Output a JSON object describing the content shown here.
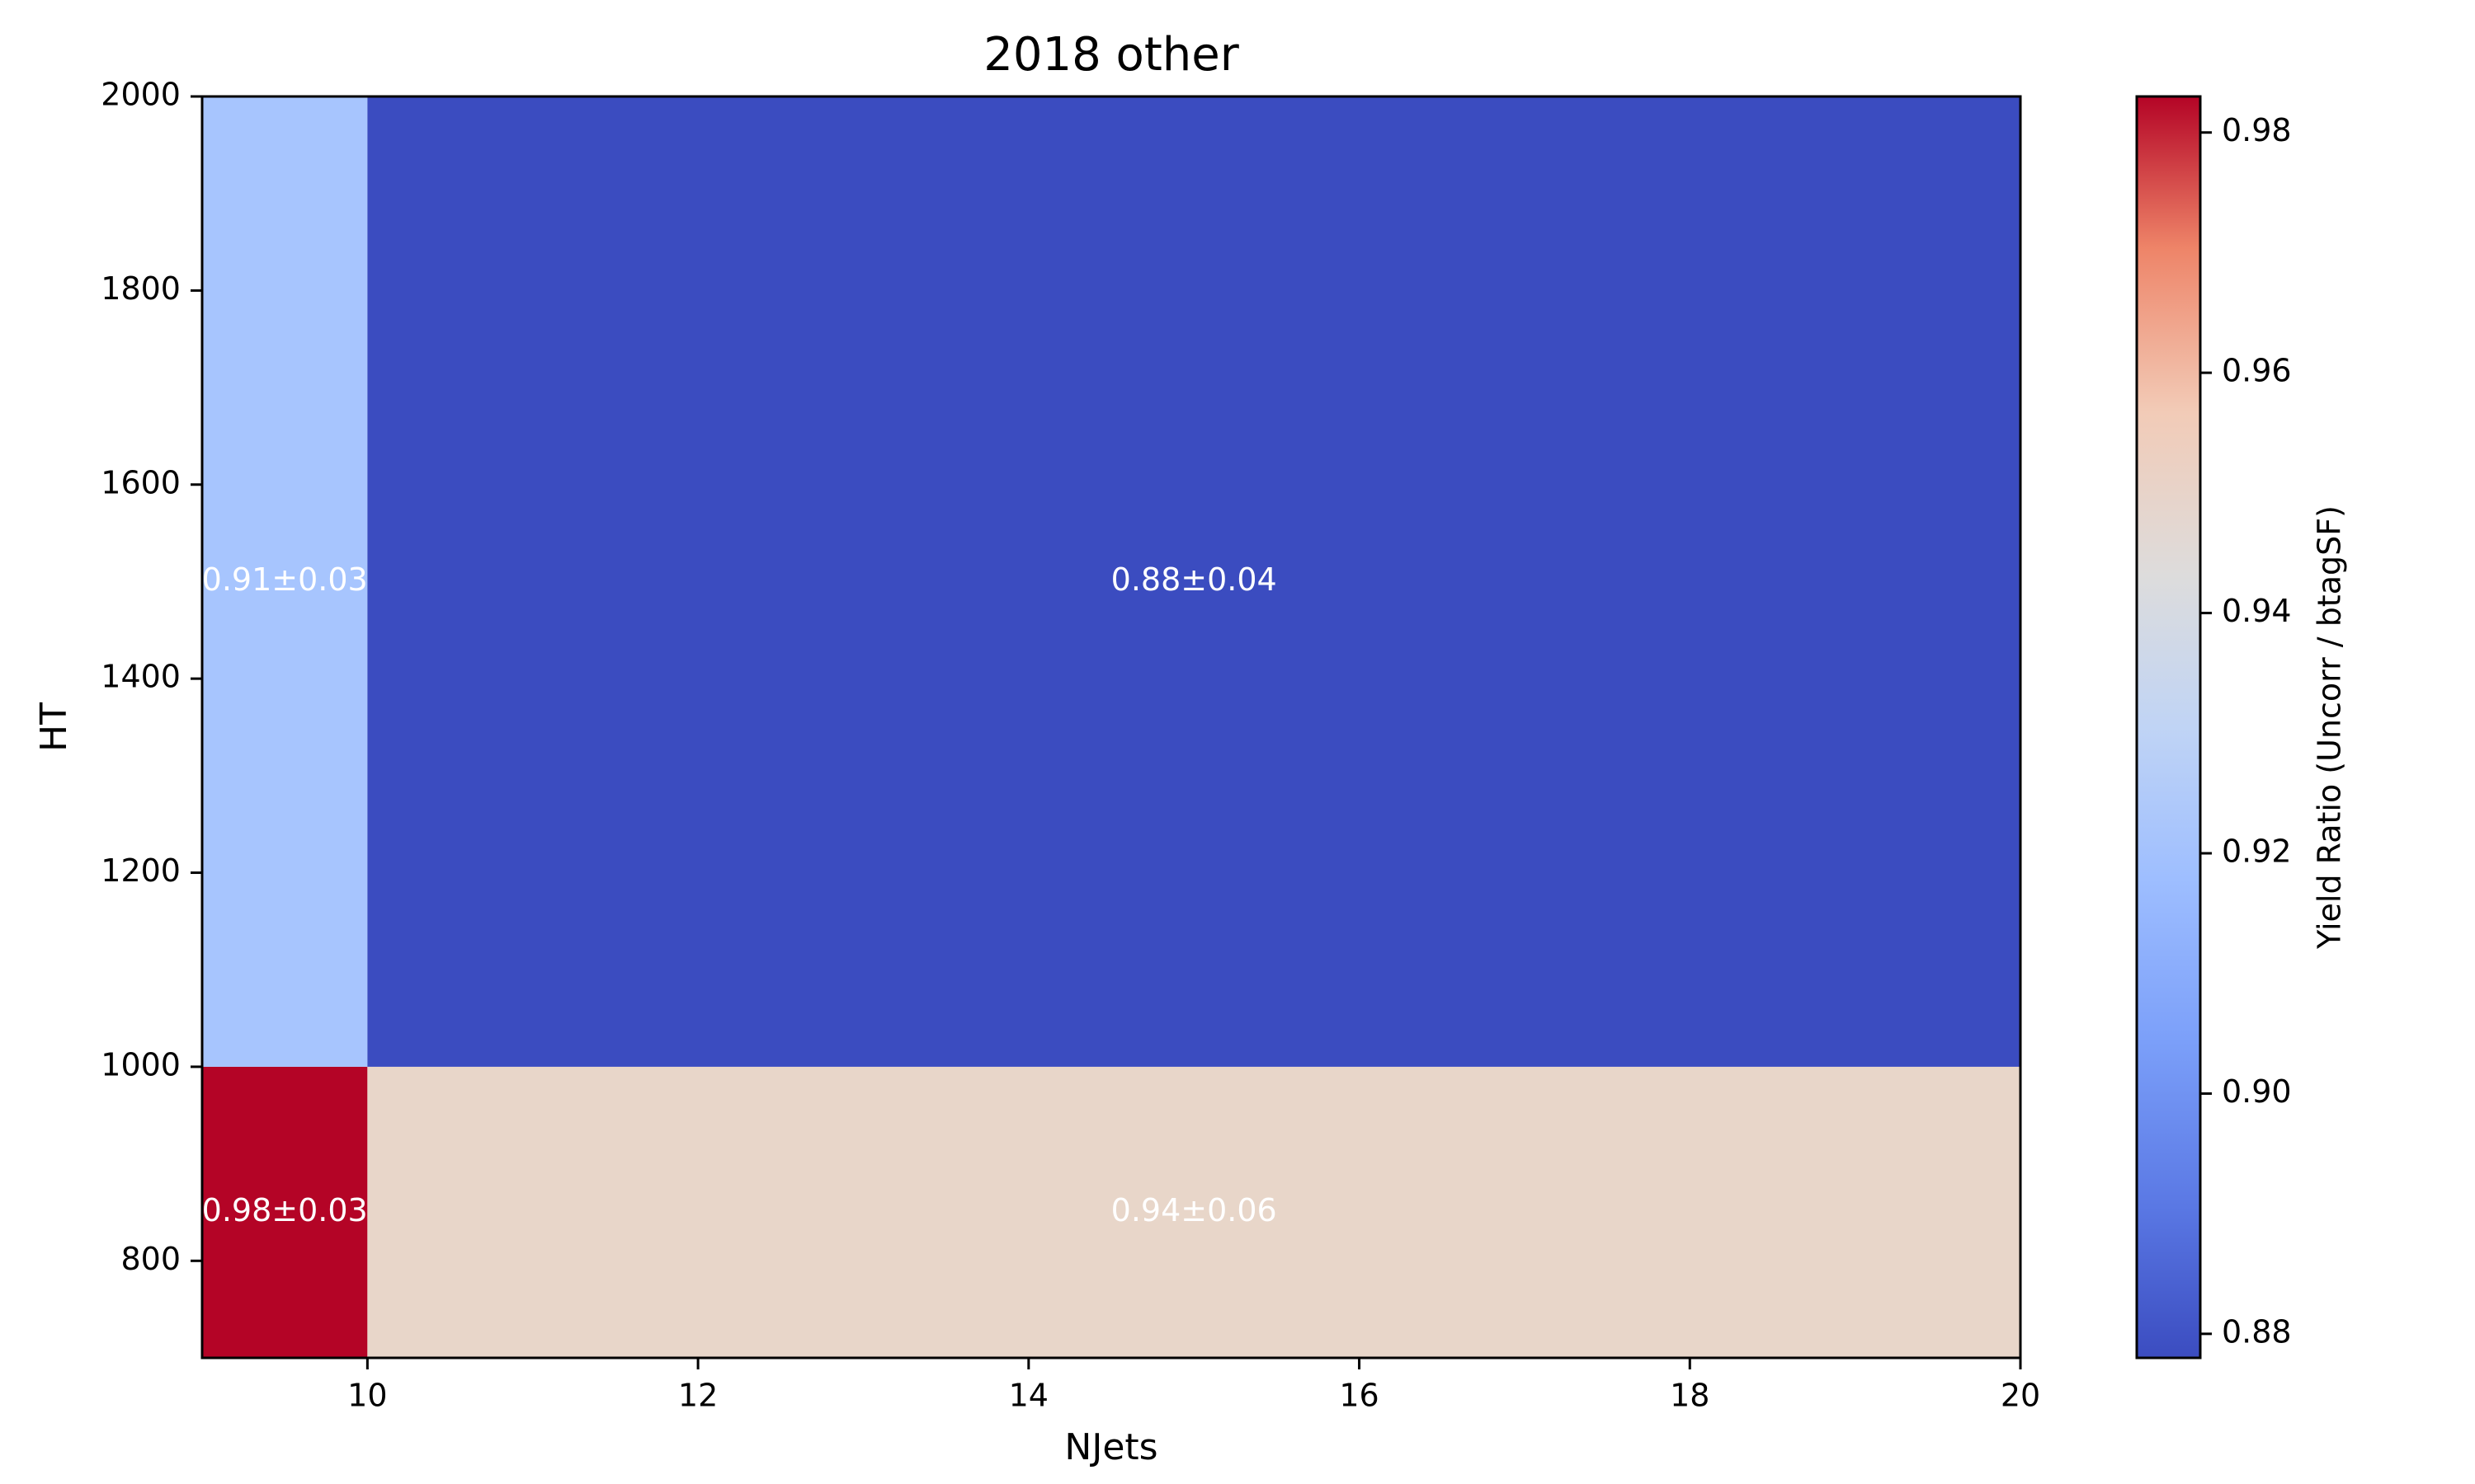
{
  "chart_data": {
    "type": "heatmap",
    "title": "2018 other",
    "xlabel": "NJets",
    "ylabel": "HT",
    "xlim": [
      9,
      20
    ],
    "ylim": [
      700,
      2000
    ],
    "x_ticks": [
      10,
      12,
      14,
      16,
      18,
      20
    ],
    "y_ticks": [
      800,
      1000,
      1200,
      1400,
      1600,
      1800,
      2000
    ],
    "cells": [
      {
        "x0": 9,
        "x1": 10,
        "y0": 700,
        "y1": 1000,
        "value": 0.98,
        "label": "0.98±0.03"
      },
      {
        "x0": 10,
        "x1": 20,
        "y0": 700,
        "y1": 1000,
        "value": 0.94,
        "label": "0.94±0.06"
      },
      {
        "x0": 9,
        "x1": 10,
        "y0": 1000,
        "y1": 2000,
        "value": 0.91,
        "label": "0.91±0.03"
      },
      {
        "x0": 10,
        "x1": 20,
        "y0": 1000,
        "y1": 2000,
        "value": 0.88,
        "label": "0.88±0.04"
      }
    ],
    "colorbar": {
      "label": "Yield Ratio (Uncorr / btagSF)",
      "min": 0.878,
      "max": 0.983,
      "ticks": [
        0.88,
        0.9,
        0.92,
        0.94,
        0.96,
        0.98
      ],
      "tick_labels": [
        "0.88",
        "0.90",
        "0.92",
        "0.94",
        "0.96",
        "0.98"
      ],
      "colormap": "coolwarm",
      "cell_colors": [
        "#b40426",
        "#e8d6c9",
        "#a7c5fe",
        "#3b4cc0"
      ]
    },
    "grid": false
  }
}
